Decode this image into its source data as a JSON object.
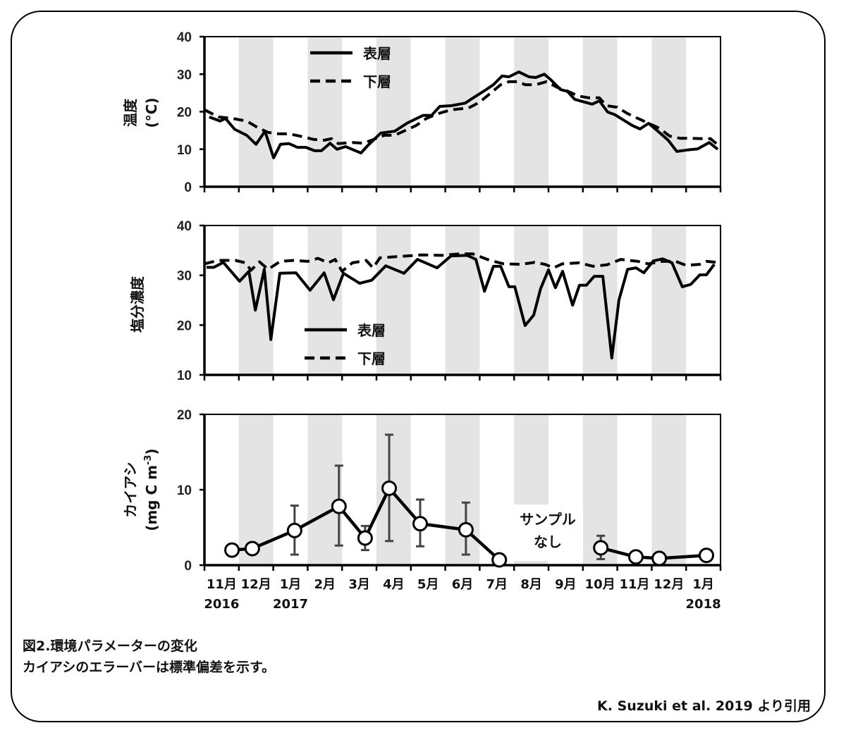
{
  "chart_data": [
    {
      "type": "line",
      "title": "",
      "ylabel": "温度",
      "ylabel_unit": "(°C)",
      "ylim": [
        0,
        40
      ],
      "yticks": [
        "0",
        "10",
        "20",
        "30",
        "40"
      ],
      "xlim_months_since_nov_2016": [
        0,
        15
      ],
      "legend": [
        "表層",
        "下層"
      ],
      "legend_position": "top-left",
      "series": [
        {
          "name": "表層",
          "style": "solid",
          "x": [
            0.14,
            0.45,
            0.61,
            0.88,
            1.23,
            1.5,
            1.76,
            2.01,
            2.21,
            2.46,
            2.7,
            2.95,
            3.2,
            3.4,
            3.65,
            3.85,
            4.1,
            4.55,
            4.75,
            5.12,
            5.53,
            5.9,
            6.35,
            6.6,
            6.84,
            7.17,
            7.58,
            7.83,
            8.16,
            8.4,
            8.65,
            8.85,
            9.14,
            9.43,
            9.63,
            9.88,
            10.08,
            10.35,
            10.55,
            10.76,
            11.07,
            11.27,
            11.48,
            11.72,
            11.93,
            12.19,
            12.44,
            12.66,
            12.91,
            13.22,
            13.48,
            13.73,
            14.04,
            14.34,
            14.67,
            14.92
          ],
          "y": [
            18.6,
            17.5,
            18.2,
            15.3,
            13.7,
            11.3,
            14.8,
            7.7,
            11.3,
            11.5,
            10.5,
            10.5,
            9.6,
            9.6,
            11.6,
            10,
            10.7,
            9,
            11,
            14.3,
            14.8,
            17,
            19,
            19,
            21.4,
            21.6,
            22.3,
            23.8,
            25.7,
            27.2,
            29.5,
            29.3,
            30.6,
            29.3,
            29.1,
            30,
            28.4,
            25.9,
            25.4,
            23.3,
            22.5,
            22,
            22.9,
            19.9,
            19.2,
            17.7,
            16.3,
            15.4,
            16.9,
            14.5,
            12.4,
            9.4,
            9.8,
            10.1,
            11.8,
            10
          ]
        },
        {
          "name": "下層",
          "style": "dashed",
          "x": [
            0,
            0.41,
            0.82,
            1.23,
            1.54,
            1.84,
            2.15,
            2.46,
            2.77,
            3.18,
            3.48,
            3.69,
            3.89,
            4.3,
            4.61,
            4.92,
            5.23,
            5.53,
            5.84,
            6.15,
            6.45,
            6.76,
            7.17,
            7.68,
            7.99,
            8.3,
            8.61,
            8.85,
            9.12,
            9.32,
            9.63,
            9.94,
            10.25,
            10.55,
            10.86,
            11.17,
            11.48,
            11.68,
            11.99,
            12.3,
            12.6,
            12.91,
            13.22,
            13.52,
            13.83,
            14.14,
            14.45,
            14.71,
            14.96
          ],
          "y": [
            20.5,
            18.6,
            18.2,
            17.5,
            15.8,
            14.5,
            14.1,
            14.1,
            13.5,
            12.6,
            12.4,
            12.8,
            11.5,
            11.8,
            11.6,
            12.6,
            13.7,
            13.7,
            15,
            16.3,
            18.2,
            19.4,
            20.5,
            21,
            22.5,
            24.8,
            27.2,
            28,
            28,
            27.2,
            27.2,
            28,
            26.5,
            25.5,
            24.2,
            23.7,
            23.7,
            21.6,
            21.2,
            19.5,
            18.2,
            16.9,
            15.6,
            13.5,
            12.9,
            12.9,
            12.8,
            12.8,
            10.9
          ]
        }
      ]
    },
    {
      "type": "line",
      "title": "",
      "ylabel": "塩分濃度",
      "ylim": [
        10,
        40
      ],
      "yticks": [
        "10",
        "20",
        "30",
        "40"
      ],
      "xlim_months_since_nov_2016": [
        0,
        15
      ],
      "legend": [
        "表層",
        "下層"
      ],
      "legend_position": "bottom-left",
      "series": [
        {
          "name": "表層",
          "style": "solid",
          "x": [
            0.06,
            0.27,
            0.55,
            1.02,
            1.29,
            1.48,
            1.74,
            1.93,
            2.19,
            2.66,
            3.07,
            3.48,
            3.75,
            4.04,
            4.51,
            4.86,
            5.27,
            5.8,
            6.19,
            6.76,
            7.17,
            7.64,
            7.89,
            8.14,
            8.4,
            8.61,
            8.85,
            9.02,
            9.32,
            9.57,
            9.77,
            10.0,
            10.2,
            10.41,
            10.7,
            10.9,
            11.1,
            11.33,
            11.58,
            11.84,
            12.05,
            12.3,
            12.54,
            12.77,
            13.05,
            13.32,
            13.59,
            13.89,
            14.14,
            14.4,
            14.59,
            14.82
          ],
          "y": [
            31.6,
            31.6,
            32.6,
            28.8,
            30.8,
            23.0,
            31.2,
            17.1,
            30.4,
            30.5,
            27.0,
            30.5,
            25.1,
            30.4,
            28.4,
            29.0,
            31.9,
            30.4,
            33.2,
            31.5,
            33.9,
            34.0,
            33.2,
            26.8,
            31.8,
            31.8,
            27.7,
            27.7,
            19.9,
            22.0,
            27.3,
            31.1,
            27.5,
            30.8,
            24.0,
            28.0,
            28.0,
            29.8,
            29.8,
            13.4,
            25.1,
            31.2,
            31.5,
            30.5,
            32.9,
            33.3,
            32.5,
            27.7,
            28.2,
            30.1,
            30.1,
            32.2
          ]
        },
        {
          "name": "下層",
          "style": "dashed",
          "x": [
            0.0,
            0.4,
            0.9,
            1.2,
            1.35,
            1.6,
            1.85,
            2.2,
            2.6,
            3.0,
            3.3,
            3.6,
            3.8,
            4.0,
            4.3,
            4.7,
            4.9,
            5.1,
            5.7,
            6.3,
            6.9,
            7.4,
            7.8,
            8.3,
            8.7,
            9.2,
            9.6,
            9.9,
            10.15,
            10.4,
            10.9,
            11.3,
            11.7,
            12.1,
            12.6,
            12.9,
            13.3,
            13.7,
            14.0,
            14.4,
            14.6,
            14.9
          ],
          "y": [
            32.3,
            33.0,
            33.0,
            32.5,
            31.0,
            32.7,
            31.2,
            32.8,
            33.0,
            32.8,
            33.4,
            32.5,
            33.2,
            30.8,
            32.5,
            33.0,
            31.5,
            33.5,
            33.8,
            34.1,
            34.0,
            34.3,
            34.3,
            33.0,
            32.3,
            32.2,
            32.6,
            32.2,
            31.5,
            32.3,
            32.5,
            31.8,
            32.1,
            33.2,
            32.8,
            32.3,
            32.8,
            32.8,
            32.0,
            32.2,
            32.8,
            32.6
          ]
        }
      ]
    },
    {
      "type": "line",
      "title": "",
      "ylabel": "カイアシ",
      "ylabel_unit": "(mg C m",
      "ylabel_unit_sup": "-3",
      "ylabel_unit_close": ")",
      "ylim": [
        0,
        20
      ],
      "yticks": [
        "0",
        "10",
        "20"
      ],
      "xlim_months_since_nov_2016": [
        0,
        15
      ],
      "annotation": [
        "サンプル",
        "なし"
      ],
      "series": [
        {
          "name": "カイアシ",
          "marker": "open-circle",
          "error_bars": "standard deviation",
          "segments": [
            [
              {
                "x": 0.8,
                "y": 2.0
              },
              {
                "x": 1.39,
                "y": 2.2
              },
              {
                "x": 2.62,
                "y": 4.6,
                "lo": 1.4,
                "hi": 7.9
              },
              {
                "x": 3.91,
                "y": 7.8,
                "lo": 2.6,
                "hi": 13.2
              },
              {
                "x": 4.67,
                "y": 3.6,
                "lo": 2.0,
                "hi": 5.2
              },
              {
                "x": 5.37,
                "y": 10.2,
                "lo": 3.2,
                "hi": 17.3
              },
              {
                "x": 6.27,
                "y": 5.5,
                "lo": 2.5,
                "hi": 8.7
              },
              {
                "x": 7.6,
                "y": 4.7,
                "lo": 1.4,
                "hi": 8.3
              },
              {
                "x": 8.57,
                "y": 0.7
              }
            ],
            [
              {
                "x": 11.52,
                "y": 2.3,
                "lo": 0.8,
                "hi": 3.9
              },
              {
                "x": 12.54,
                "y": 1.1
              },
              {
                "x": 13.22,
                "y": 0.9
              },
              {
                "x": 14.59,
                "y": 1.3
              }
            ]
          ]
        }
      ],
      "x_tick_labels": [
        "11月",
        "12月",
        "1月",
        "2月",
        "3月",
        "4月",
        "5月",
        "6月",
        "7月",
        "8月",
        "9月",
        "10月",
        "11月",
        "12月",
        "1月"
      ],
      "x_year_labels": [
        {
          "index": 0,
          "label": "2016"
        },
        {
          "index": 2,
          "label": "2017"
        },
        {
          "index": 14,
          "label": "2018"
        }
      ]
    }
  ],
  "caption": {
    "title": "図2.環境パラメーターの変化",
    "note": "カイアシのエラーバーは標準偏差を示す。",
    "source": "K. Suzuki et al. 2019 より引用"
  },
  "colors": {
    "band": "#e4e4e4",
    "line": "#000000",
    "errorbar": "#444444"
  }
}
